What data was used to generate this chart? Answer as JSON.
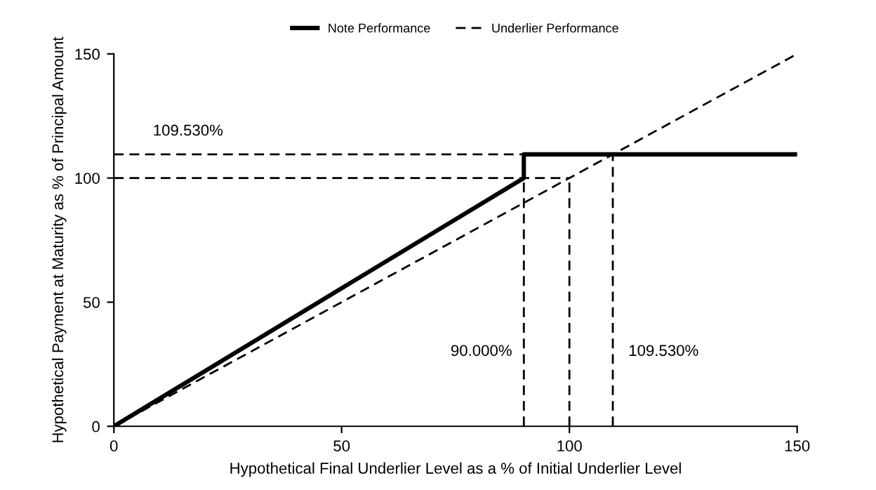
{
  "chart_data": {
    "type": "line",
    "xlabel": "Hypothetical Final Underlier Level as a % of Initial Underlier Level",
    "ylabel": "Hypothetical Payment at Maturity as % of Principal Amount",
    "xlim": [
      0,
      150
    ],
    "ylim": [
      0,
      150
    ],
    "xticks": [
      0,
      50,
      100,
      150
    ],
    "yticks": [
      0,
      50,
      100,
      150
    ],
    "grid": false,
    "legend": "top",
    "series": [
      {
        "name": "Note Performance",
        "color": "#000000",
        "line_style": "solid",
        "x": [
          0,
          50,
          90,
          90,
          150
        ],
        "values": [
          0,
          55.6,
          100,
          109.53,
          109.53
        ]
      },
      {
        "name": "Underlier Performance",
        "color": "#000000",
        "line_style": "dashed",
        "x": [
          0,
          150
        ],
        "values": [
          0,
          150
        ]
      },
      {
        "color": "#000000",
        "line_style": "dashed",
        "x": [
          0,
          109.53
        ],
        "values": [
          109.53,
          109.53
        ]
      },
      {
        "color": "#000000",
        "line_style": "dashed",
        "x": [
          0,
          100
        ],
        "values": [
          100,
          100
        ]
      },
      {
        "color": "#000000",
        "line_style": "dashed",
        "x": [
          90,
          90
        ],
        "values": [
          0,
          100
        ]
      },
      {
        "color": "#000000",
        "line_style": "dashed",
        "x": [
          100,
          100
        ],
        "values": [
          0,
          100
        ]
      },
      {
        "color": "#000000",
        "line_style": "dashed",
        "x": [
          109.53,
          109.53
        ],
        "values": [
          0,
          109.53
        ]
      }
    ],
    "annotations": [
      {
        "text": "109.530%",
        "x": 0,
        "y": 109.53
      },
      {
        "text": "90.000%",
        "x": 90,
        "y": 30
      },
      {
        "text": "109.530%",
        "x": 109.53,
        "y": 30
      }
    ]
  }
}
